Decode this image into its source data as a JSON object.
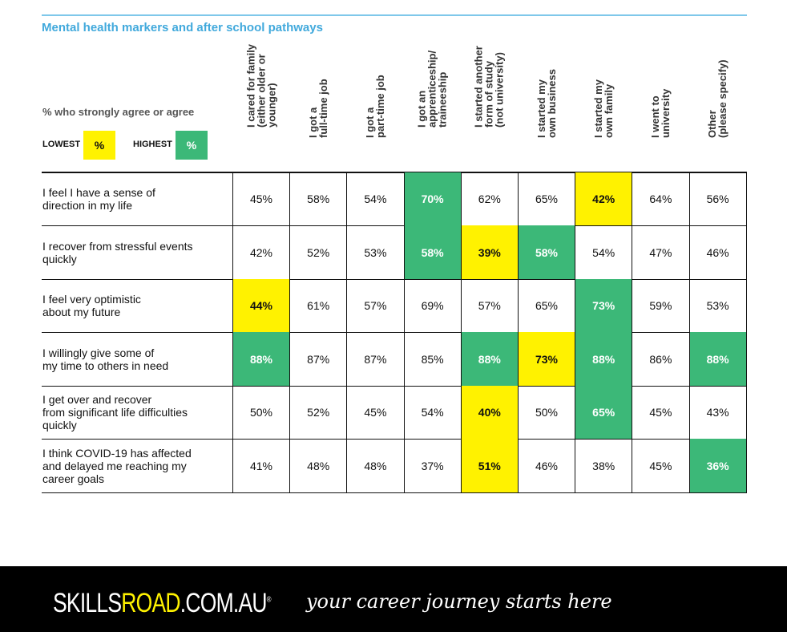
{
  "title": "Mental health markers and after school pathways",
  "legend": {
    "label": "% who strongly agree or agree",
    "lowest_label": "LOWEST",
    "highest_label": "HIGHEST",
    "swatch_text": "%",
    "lowest_color": "#fff200",
    "highest_color": "#3cb878"
  },
  "chart_data": {
    "type": "table",
    "columns": [
      "I cared for family\n(either older or\nyounger)",
      "I got a\nfull-time job",
      "I got a\npart-time job",
      "I got an\napprenticeship/\ntraineeship",
      "I started another\nform of study\n(not university)",
      "I started my\nown business",
      "I started my\nown family",
      "I went to\nuniversity",
      "Other\n(please specify)"
    ],
    "rows": [
      {
        "label": "I feel I have a sense of\ndirection in my life",
        "values": [
          "45%",
          "58%",
          "54%",
          "70%",
          "62%",
          "65%",
          "42%",
          "64%",
          "56%"
        ],
        "highlight": [
          "",
          "",
          "",
          "high",
          "",
          "",
          "low",
          "",
          ""
        ]
      },
      {
        "label": "I recover from stressful events\nquickly",
        "values": [
          "42%",
          "52%",
          "53%",
          "58%",
          "39%",
          "58%",
          "54%",
          "47%",
          "46%"
        ],
        "highlight": [
          "",
          "",
          "",
          "high",
          "low",
          "high",
          "",
          "",
          ""
        ]
      },
      {
        "label": "I feel very optimistic\nabout my future",
        "values": [
          "44%",
          "61%",
          "57%",
          "69%",
          "57%",
          "65%",
          "73%",
          "59%",
          "53%"
        ],
        "highlight": [
          "low",
          "",
          "",
          "",
          "",
          "",
          "high",
          "",
          ""
        ]
      },
      {
        "label": "I willingly give some of\nmy time to others in need",
        "values": [
          "88%",
          "87%",
          "87%",
          "85%",
          "88%",
          "73%",
          "88%",
          "86%",
          "88%"
        ],
        "highlight": [
          "high",
          "",
          "",
          "",
          "high",
          "low",
          "high",
          "",
          "high"
        ]
      },
      {
        "label": "I get over and recover\nfrom significant life difficulties\nquickly",
        "values": [
          "50%",
          "52%",
          "45%",
          "54%",
          "40%",
          "50%",
          "65%",
          "45%",
          "43%"
        ],
        "highlight": [
          "",
          "",
          "",
          "",
          "low",
          "",
          "high",
          "",
          ""
        ]
      },
      {
        "label": "I think COVID-19 has affected\nand delayed me reaching my\ncareer goals",
        "values": [
          "41%",
          "48%",
          "48%",
          "37%",
          "51%",
          "46%",
          "38%",
          "45%",
          "36%"
        ],
        "highlight": [
          "",
          "",
          "",
          "",
          "low",
          "",
          "",
          "",
          "high"
        ]
      }
    ]
  },
  "footer": {
    "brand_part1": "SKILLS",
    "brand_part2": "ROAD",
    "brand_part3": ".COM.AU",
    "brand_mark": "®",
    "tagline": "your career journey starts here"
  }
}
